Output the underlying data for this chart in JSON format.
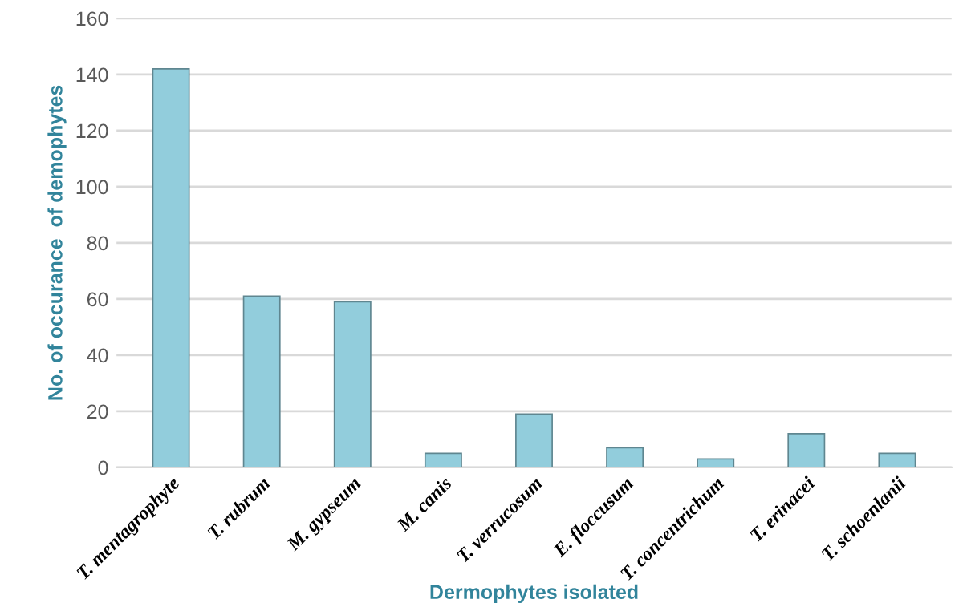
{
  "chart_data": {
    "type": "bar",
    "xlabel": "Dermophytes isolated",
    "ylabel": "No. of occurance  of demophytes",
    "categories": [
      "T. mentagrophyte",
      "T. rubrum",
      "M. gypseum",
      "M. canis",
      "T. verrucosum",
      "E. floccusum",
      "T. concentrichum",
      "T. erinacei",
      "T. schoenlanii"
    ],
    "values": [
      142,
      61,
      59,
      5,
      19,
      7,
      3,
      12,
      5
    ],
    "color": "#92cddc",
    "ylim": [
      0,
      160
    ],
    "yticks": [
      0,
      20,
      40,
      60,
      80,
      100,
      120,
      140,
      160
    ],
    "grid": "y",
    "legend": false
  }
}
